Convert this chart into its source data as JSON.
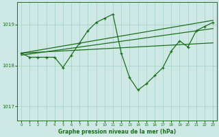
{
  "title": "Graphe pression niveau de la mer (hPa)",
  "background_color": "#cee9e5",
  "grid_color": "#a8d5c8",
  "line_color": "#1a6e1a",
  "x_ticks": [
    0,
    1,
    2,
    3,
    4,
    5,
    6,
    7,
    8,
    9,
    10,
    11,
    12,
    13,
    14,
    15,
    16,
    17,
    18,
    19,
    20,
    21,
    22,
    23
  ],
  "y_ticks": [
    1017,
    1018,
    1019
  ],
  "ylim": [
    1016.65,
    1019.55
  ],
  "xlim": [
    -0.5,
    23.5
  ],
  "series1_x": [
    0,
    1,
    2,
    3,
    4,
    5,
    6,
    7,
    8,
    9,
    10,
    11,
    12,
    13,
    14,
    15,
    16,
    17,
    18,
    19,
    20,
    21,
    22,
    23
  ],
  "series1_y": [
    1018.3,
    1018.2,
    1018.2,
    1018.2,
    1018.2,
    1017.95,
    1018.25,
    1018.55,
    1018.85,
    1019.05,
    1019.15,
    1019.25,
    1018.3,
    1017.7,
    1017.4,
    1017.55,
    1017.75,
    1017.95,
    1018.35,
    1018.6,
    1018.45,
    1018.85,
    1018.95,
    1019.05
  ],
  "trend1_x": [
    0,
    23
  ],
  "trend1_y": [
    1018.3,
    1018.55
  ],
  "trend2_x": [
    0,
    23
  ],
  "trend2_y": [
    1018.25,
    1018.9
  ],
  "trend3_x": [
    0,
    23
  ],
  "trend3_y": [
    1018.3,
    1019.1
  ]
}
